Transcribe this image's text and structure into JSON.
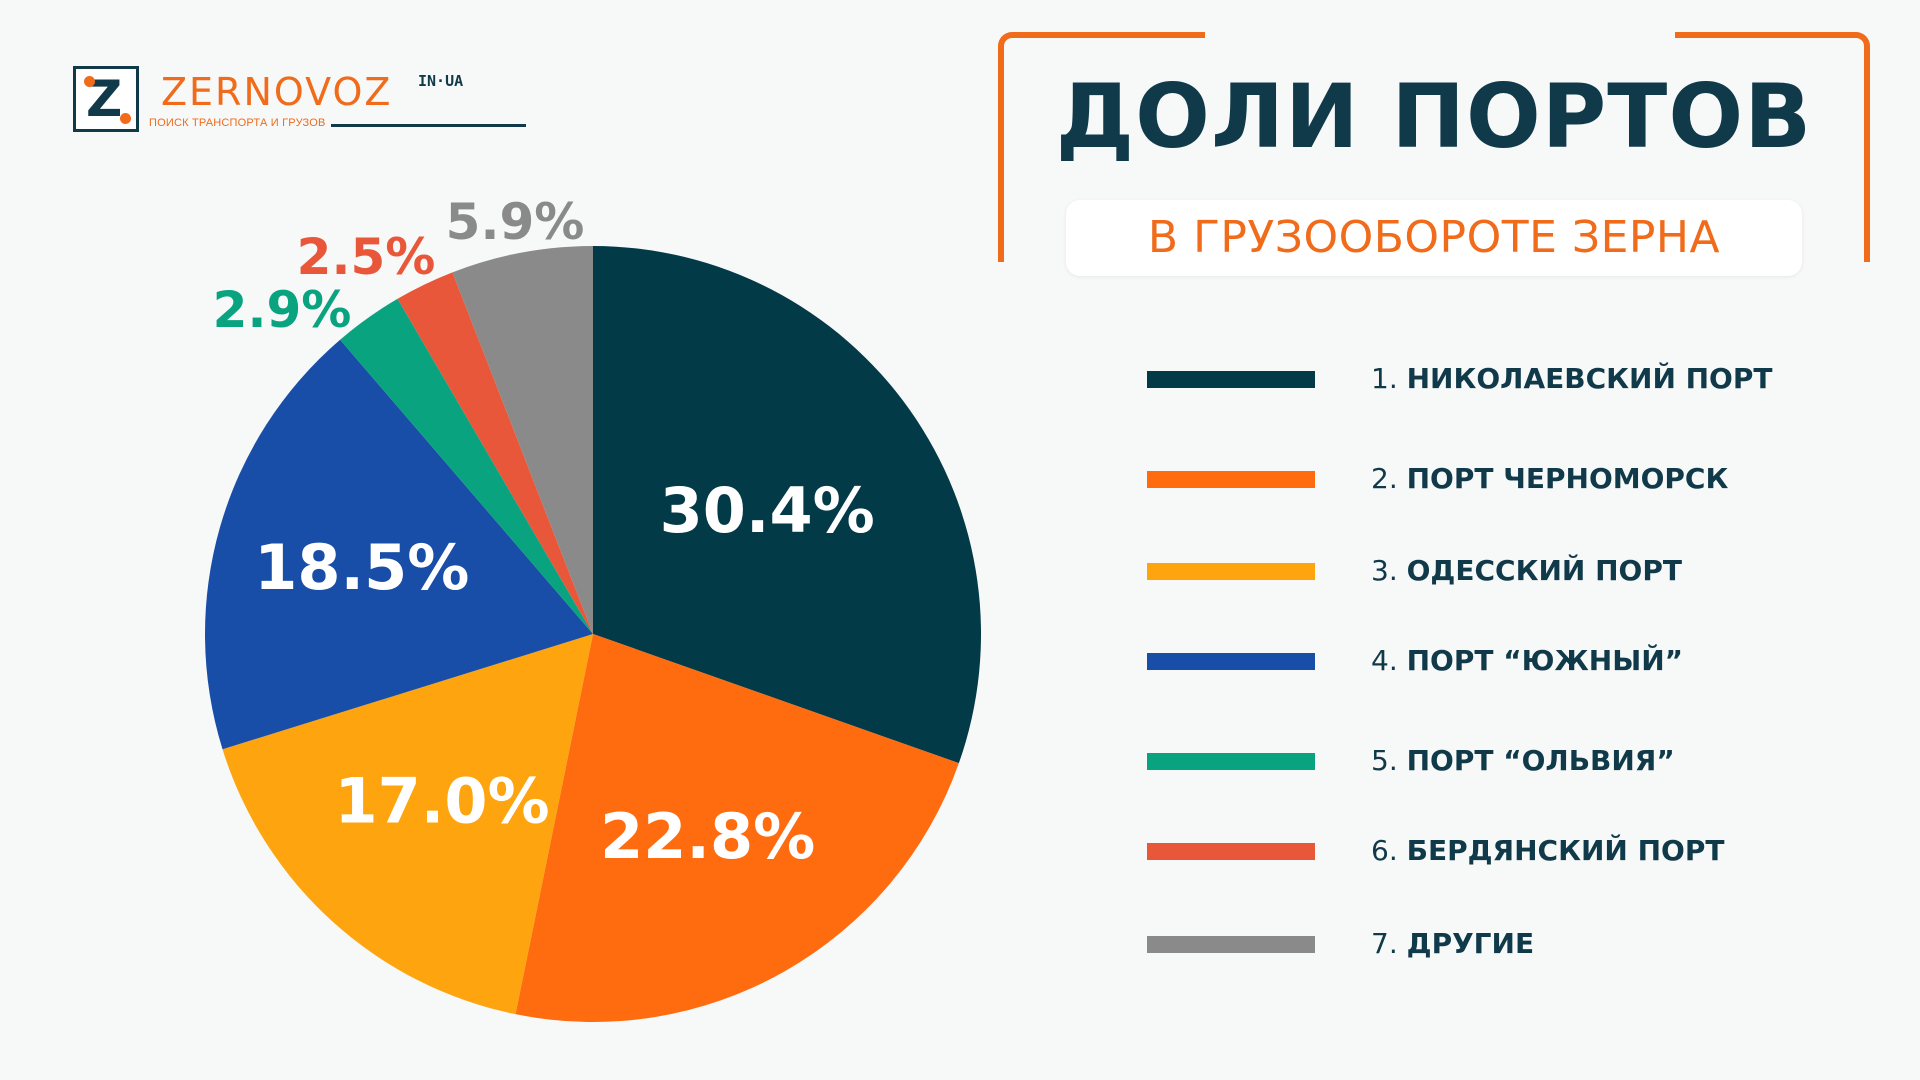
{
  "logo": {
    "name": "ZERNOVOZ",
    "domain": "IN·UA",
    "tagline": "ПОИСК ТРАНСПОРТА И ГРУЗОВ"
  },
  "header": {
    "title": "ДОЛИ ПОРТОВ",
    "subtitle": "В ГРУЗООБОРОТЕ ЗЕРНА"
  },
  "legend": [
    {
      "num": "1.",
      "name": "НИКОЛАЕВСКИЙ ПОРТ",
      "color": "#033a47"
    },
    {
      "num": "2.",
      "name": "ПОРТ ЧЕРНОМОРСК",
      "color": "#ff6c10"
    },
    {
      "num": "3.",
      "name": "ОДЕССКИЙ ПОРТ",
      "color": "#fda40f"
    },
    {
      "num": "4.",
      "name": "ПОРТ “ЮЖНЫЙ”",
      "color": "#184ea8"
    },
    {
      "num": "5.",
      "name": "ПОРТ “ОЛЬВИЯ”",
      "color": "#0aa380"
    },
    {
      "num": "6.",
      "name": "БЕРДЯНСКИЙ ПОРТ",
      "color": "#e8573a"
    },
    {
      "num": "7.",
      "name": "ДРУГИЕ",
      "color": "#8a8a8a"
    }
  ],
  "chart_data": {
    "type": "pie",
    "title": "ДОЛИ ПОРТОВ",
    "subtitle": "В ГРУЗООБОРОТЕ ЗЕРНА",
    "legend_position": "right",
    "slices": [
      {
        "label": "НИКОЛАЕВСКИЙ ПОРТ",
        "value": 30.4,
        "display": "30.4%",
        "color": "#033a47"
      },
      {
        "label": "ПОРТ ЧЕРНОМОРСК",
        "value": 22.8,
        "display": "22.8%",
        "color": "#ff6c10"
      },
      {
        "label": "ОДЕССКИЙ ПОРТ",
        "value": 17.0,
        "display": "17.0%",
        "color": "#fda40f"
      },
      {
        "label": "ПОРТ “ЮЖНЫЙ”",
        "value": 18.5,
        "display": "18.5%",
        "color": "#184ea8"
      },
      {
        "label": "ПОРТ “ОЛЬВИЯ”",
        "value": 2.9,
        "display": "2.9%",
        "color": "#0aa380"
      },
      {
        "label": "БЕРДЯНСКИЙ ПОРТ",
        "value": 2.5,
        "display": "2.5%",
        "color": "#e8573a"
      },
      {
        "label": "ДРУГИЕ",
        "value": 5.9,
        "display": "5.9%",
        "color": "#8a8a8a"
      }
    ]
  }
}
